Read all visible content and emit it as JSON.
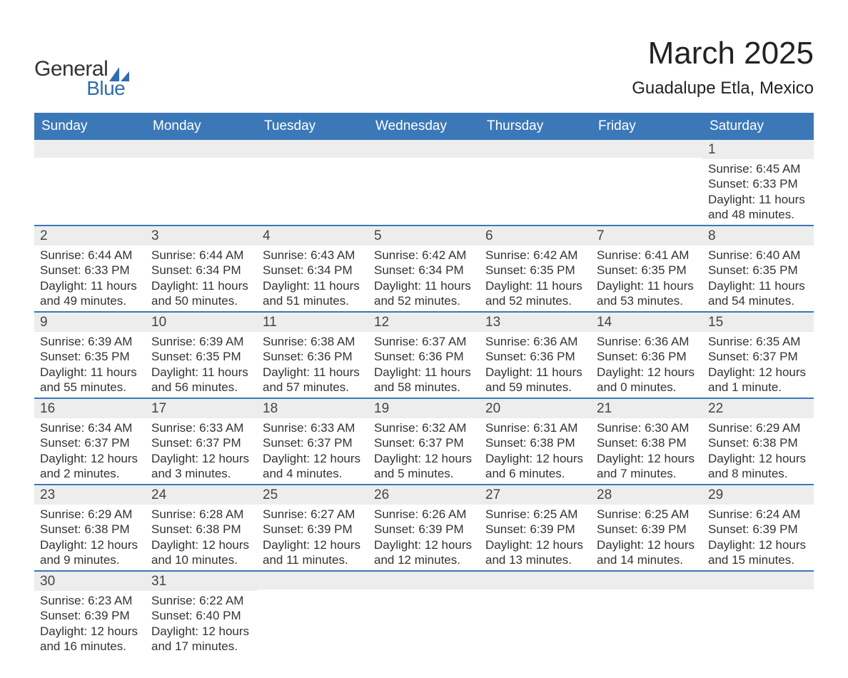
{
  "logo": {
    "line1": "General",
    "line2": "Blue",
    "sail_color": "#2f6db0"
  },
  "header": {
    "title": "March 2025",
    "subtitle": "Guadalupe Etla, Mexico"
  },
  "colors": {
    "header_bg": "#3b78b8",
    "header_text": "#ffffff",
    "daynum_bg": "#ededed",
    "divider": "#3b78b8",
    "body_text": "#333333"
  },
  "typography": {
    "title_fontsize": 44,
    "subtitle_fontsize": 24,
    "dayheader_fontsize": 19,
    "daynum_fontsize": 19,
    "cell_fontsize": 17
  },
  "day_labels": [
    "Sunday",
    "Monday",
    "Tuesday",
    "Wednesday",
    "Thursday",
    "Friday",
    "Saturday"
  ],
  "weeks": [
    [
      {
        "empty": true
      },
      {
        "empty": true
      },
      {
        "empty": true
      },
      {
        "empty": true
      },
      {
        "empty": true
      },
      {
        "empty": true
      },
      {
        "day": "1",
        "sunrise": "Sunrise: 6:45 AM",
        "sunset": "Sunset: 6:33 PM",
        "dl1": "Daylight: 11 hours",
        "dl2": "and 48 minutes."
      }
    ],
    [
      {
        "day": "2",
        "sunrise": "Sunrise: 6:44 AM",
        "sunset": "Sunset: 6:33 PM",
        "dl1": "Daylight: 11 hours",
        "dl2": "and 49 minutes."
      },
      {
        "day": "3",
        "sunrise": "Sunrise: 6:44 AM",
        "sunset": "Sunset: 6:34 PM",
        "dl1": "Daylight: 11 hours",
        "dl2": "and 50 minutes."
      },
      {
        "day": "4",
        "sunrise": "Sunrise: 6:43 AM",
        "sunset": "Sunset: 6:34 PM",
        "dl1": "Daylight: 11 hours",
        "dl2": "and 51 minutes."
      },
      {
        "day": "5",
        "sunrise": "Sunrise: 6:42 AM",
        "sunset": "Sunset: 6:34 PM",
        "dl1": "Daylight: 11 hours",
        "dl2": "and 52 minutes."
      },
      {
        "day": "6",
        "sunrise": "Sunrise: 6:42 AM",
        "sunset": "Sunset: 6:35 PM",
        "dl1": "Daylight: 11 hours",
        "dl2": "and 52 minutes."
      },
      {
        "day": "7",
        "sunrise": "Sunrise: 6:41 AM",
        "sunset": "Sunset: 6:35 PM",
        "dl1": "Daylight: 11 hours",
        "dl2": "and 53 minutes."
      },
      {
        "day": "8",
        "sunrise": "Sunrise: 6:40 AM",
        "sunset": "Sunset: 6:35 PM",
        "dl1": "Daylight: 11 hours",
        "dl2": "and 54 minutes."
      }
    ],
    [
      {
        "day": "9",
        "sunrise": "Sunrise: 6:39 AM",
        "sunset": "Sunset: 6:35 PM",
        "dl1": "Daylight: 11 hours",
        "dl2": "and 55 minutes."
      },
      {
        "day": "10",
        "sunrise": "Sunrise: 6:39 AM",
        "sunset": "Sunset: 6:35 PM",
        "dl1": "Daylight: 11 hours",
        "dl2": "and 56 minutes."
      },
      {
        "day": "11",
        "sunrise": "Sunrise: 6:38 AM",
        "sunset": "Sunset: 6:36 PM",
        "dl1": "Daylight: 11 hours",
        "dl2": "and 57 minutes."
      },
      {
        "day": "12",
        "sunrise": "Sunrise: 6:37 AM",
        "sunset": "Sunset: 6:36 PM",
        "dl1": "Daylight: 11 hours",
        "dl2": "and 58 minutes."
      },
      {
        "day": "13",
        "sunrise": "Sunrise: 6:36 AM",
        "sunset": "Sunset: 6:36 PM",
        "dl1": "Daylight: 11 hours",
        "dl2": "and 59 minutes."
      },
      {
        "day": "14",
        "sunrise": "Sunrise: 6:36 AM",
        "sunset": "Sunset: 6:36 PM",
        "dl1": "Daylight: 12 hours",
        "dl2": "and 0 minutes."
      },
      {
        "day": "15",
        "sunrise": "Sunrise: 6:35 AM",
        "sunset": "Sunset: 6:37 PM",
        "dl1": "Daylight: 12 hours",
        "dl2": "and 1 minute."
      }
    ],
    [
      {
        "day": "16",
        "sunrise": "Sunrise: 6:34 AM",
        "sunset": "Sunset: 6:37 PM",
        "dl1": "Daylight: 12 hours",
        "dl2": "and 2 minutes."
      },
      {
        "day": "17",
        "sunrise": "Sunrise: 6:33 AM",
        "sunset": "Sunset: 6:37 PM",
        "dl1": "Daylight: 12 hours",
        "dl2": "and 3 minutes."
      },
      {
        "day": "18",
        "sunrise": "Sunrise: 6:33 AM",
        "sunset": "Sunset: 6:37 PM",
        "dl1": "Daylight: 12 hours",
        "dl2": "and 4 minutes."
      },
      {
        "day": "19",
        "sunrise": "Sunrise: 6:32 AM",
        "sunset": "Sunset: 6:37 PM",
        "dl1": "Daylight: 12 hours",
        "dl2": "and 5 minutes."
      },
      {
        "day": "20",
        "sunrise": "Sunrise: 6:31 AM",
        "sunset": "Sunset: 6:38 PM",
        "dl1": "Daylight: 12 hours",
        "dl2": "and 6 minutes."
      },
      {
        "day": "21",
        "sunrise": "Sunrise: 6:30 AM",
        "sunset": "Sunset: 6:38 PM",
        "dl1": "Daylight: 12 hours",
        "dl2": "and 7 minutes."
      },
      {
        "day": "22",
        "sunrise": "Sunrise: 6:29 AM",
        "sunset": "Sunset: 6:38 PM",
        "dl1": "Daylight: 12 hours",
        "dl2": "and 8 minutes."
      }
    ],
    [
      {
        "day": "23",
        "sunrise": "Sunrise: 6:29 AM",
        "sunset": "Sunset: 6:38 PM",
        "dl1": "Daylight: 12 hours",
        "dl2": "and 9 minutes."
      },
      {
        "day": "24",
        "sunrise": "Sunrise: 6:28 AM",
        "sunset": "Sunset: 6:38 PM",
        "dl1": "Daylight: 12 hours",
        "dl2": "and 10 minutes."
      },
      {
        "day": "25",
        "sunrise": "Sunrise: 6:27 AM",
        "sunset": "Sunset: 6:39 PM",
        "dl1": "Daylight: 12 hours",
        "dl2": "and 11 minutes."
      },
      {
        "day": "26",
        "sunrise": "Sunrise: 6:26 AM",
        "sunset": "Sunset: 6:39 PM",
        "dl1": "Daylight: 12 hours",
        "dl2": "and 12 minutes."
      },
      {
        "day": "27",
        "sunrise": "Sunrise: 6:25 AM",
        "sunset": "Sunset: 6:39 PM",
        "dl1": "Daylight: 12 hours",
        "dl2": "and 13 minutes."
      },
      {
        "day": "28",
        "sunrise": "Sunrise: 6:25 AM",
        "sunset": "Sunset: 6:39 PM",
        "dl1": "Daylight: 12 hours",
        "dl2": "and 14 minutes."
      },
      {
        "day": "29",
        "sunrise": "Sunrise: 6:24 AM",
        "sunset": "Sunset: 6:39 PM",
        "dl1": "Daylight: 12 hours",
        "dl2": "and 15 minutes."
      }
    ],
    [
      {
        "day": "30",
        "sunrise": "Sunrise: 6:23 AM",
        "sunset": "Sunset: 6:39 PM",
        "dl1": "Daylight: 12 hours",
        "dl2": "and 16 minutes."
      },
      {
        "day": "31",
        "sunrise": "Sunrise: 6:22 AM",
        "sunset": "Sunset: 6:40 PM",
        "dl1": "Daylight: 12 hours",
        "dl2": "and 17 minutes."
      },
      {
        "empty": true
      },
      {
        "empty": true
      },
      {
        "empty": true
      },
      {
        "empty": true
      },
      {
        "empty": true
      }
    ]
  ]
}
